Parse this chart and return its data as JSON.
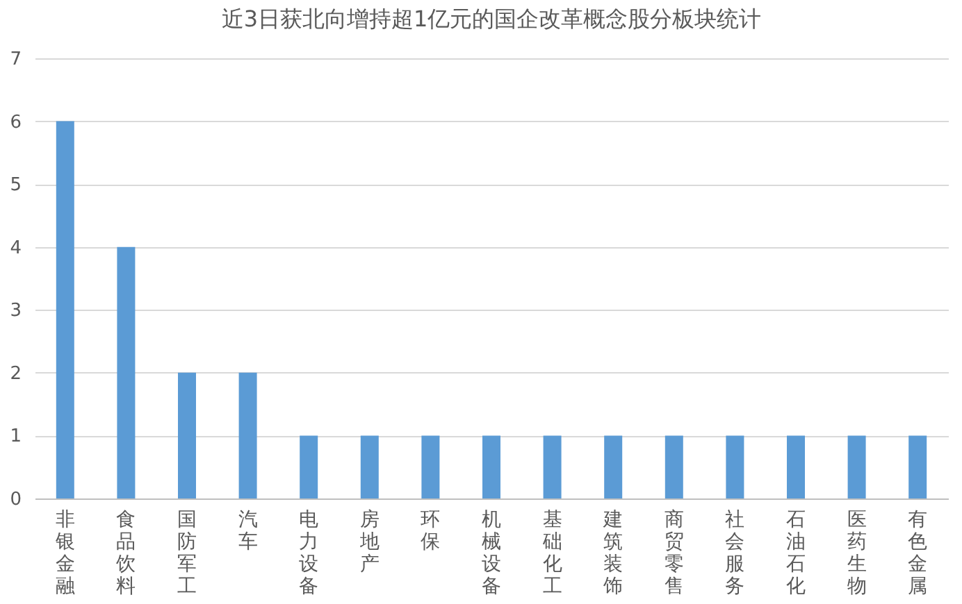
{
  "chart_data": {
    "type": "bar",
    "title": "近3日获北向增持超1亿元的国企改革概念股分板块统计",
    "categories": [
      "非银金融",
      "食品饮料",
      "国防军工",
      "汽车",
      "电力设备",
      "房地产",
      "环保",
      "机械设备",
      "基础化工",
      "建筑装饰",
      "商贸零售",
      "社会服务",
      "石油石化",
      "医药生物",
      "有色金属"
    ],
    "values": [
      6,
      4,
      2,
      2,
      1,
      1,
      1,
      1,
      1,
      1,
      1,
      1,
      1,
      1,
      1
    ],
    "color": "#5b9bd5",
    "ylim": [
      0,
      7
    ],
    "yticks": [
      0,
      1,
      2,
      3,
      4,
      5,
      6,
      7
    ],
    "grid": "y"
  }
}
